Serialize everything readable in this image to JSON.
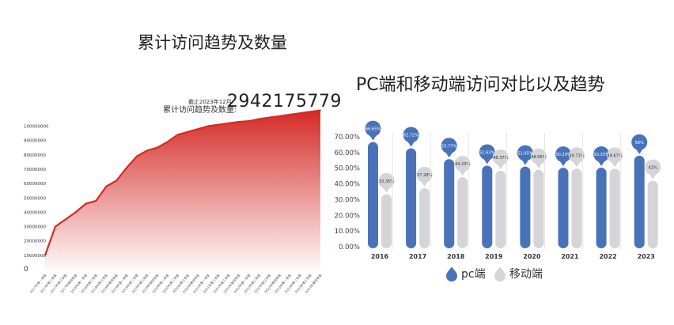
{
  "chart_data": [
    {
      "type": "area",
      "title": "累计访问趋势及数量",
      "as_of": "截止2023年12月",
      "total_label": "累计访问趋势及数量:",
      "total_value": "2942175779",
      "yticks": [
        "0",
        "10000000",
        "20000000",
        "30000000",
        "40000000",
        "50000000",
        "60000000",
        "70000000",
        "80000000",
        "90000000",
        "100000000"
      ],
      "ylim": [
        0,
        110000000
      ],
      "categories": [
        "2017年第一季度",
        "2017年第二季度",
        "2017年第三季度",
        "2017年第四季度",
        "2018年第一季度",
        "2018年第二季度",
        "2018年第三季度",
        "2018年第四季度",
        "2019年第一季度",
        "2019年第二季度",
        "2019年第三季度",
        "2019年第四季度",
        "2020年第一季度",
        "2020年第二季度",
        "2020年第三季度",
        "2020年第四季度",
        "2021年第一季度",
        "2021年第二季度",
        "2021年第三季度",
        "2021年第四季度",
        "2022年第一季度",
        "2022年第二季度",
        "2022年第三季度",
        "2022年第四季度",
        "2023年第一季度",
        "2023年第二季度",
        "2023年第三季度",
        "2023年第四季度"
      ],
      "values": [
        10000000,
        30000000,
        35000000,
        40000000,
        46000000,
        48000000,
        58000000,
        62000000,
        71000000,
        79000000,
        83000000,
        85000000,
        89000000,
        94000000,
        96000000,
        98000000,
        100000000,
        101000000,
        102000000,
        103000000,
        103500000,
        105000000,
        106000000,
        107000000,
        108000000,
        109000000,
        110000000,
        111000000
      ],
      "colors": {
        "line": "#d42a26",
        "fill": "#d42a26"
      }
    },
    {
      "type": "bar",
      "title": "PC端和移动端访问对比以及趋势",
      "categories": [
        "2016",
        "2017",
        "2018",
        "2019",
        "2020",
        "2021",
        "2022",
        "2023"
      ],
      "yticks": [
        "0.00%",
        "10.00%",
        "20.00%",
        "30.00%",
        "40.00%",
        "50.00%",
        "60.00%",
        "70.00%"
      ],
      "ylim": [
        0,
        70
      ],
      "series": [
        {
          "name": "pc端",
          "color": "#4a72b8",
          "values": [
            66.65,
            62.72,
            55.77,
            51.63,
            51.05,
            50.29,
            50.33,
            58
          ],
          "labels": [
            "66.65%",
            "62.72%",
            "55.77%",
            "51.63%",
            "51.05%",
            "50.29%",
            "50.33%",
            "58%"
          ]
        },
        {
          "name": "移动端",
          "color": "#d4d4d9",
          "values": [
            33.35,
            37.28,
            44.23,
            48.37,
            48.95,
            49.71,
            49.67,
            42
          ],
          "labels": [
            "33.35%",
            "37.28%",
            "44.23%",
            "48.37%",
            "48.95%",
            "49.71%",
            "49.67%",
            "42%"
          ]
        }
      ],
      "legend": "bottom"
    }
  ]
}
